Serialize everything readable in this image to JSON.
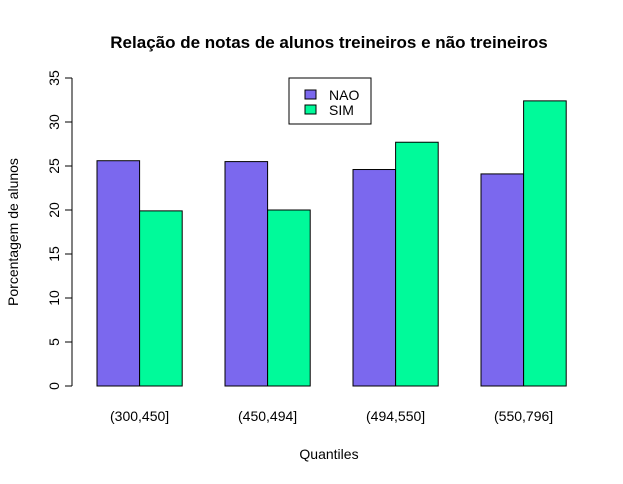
{
  "chart_data": {
    "type": "bar",
    "title": "Relação de notas de alunos treineiros e não treineiros",
    "xlabel": "Quantiles",
    "ylabel": "Porcentagem de alunos",
    "categories": [
      "(300,450]",
      "(450,494]",
      "(494,550]",
      "(550,796]"
    ],
    "series": [
      {
        "name": "NAO",
        "color": "#7b68ee",
        "values": [
          25.6,
          25.5,
          24.6,
          24.1
        ]
      },
      {
        "name": "SIM",
        "color": "#00fa9a",
        "values": [
          19.9,
          20.0,
          27.7,
          32.4
        ]
      }
    ],
    "ylim": [
      0,
      35
    ],
    "yticks": [
      "0",
      "5",
      "10",
      "15",
      "20",
      "25",
      "30",
      "35"
    ],
    "grid": false,
    "legend_position": "top-center"
  }
}
